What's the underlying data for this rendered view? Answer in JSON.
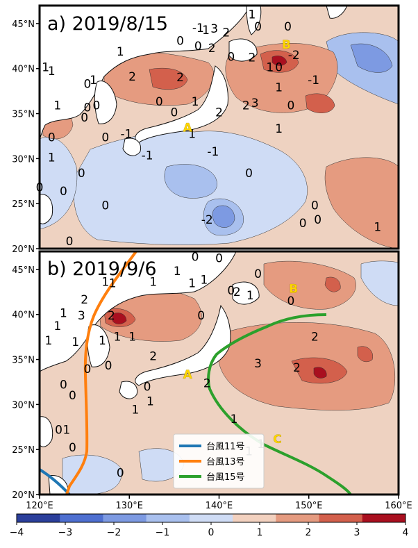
{
  "panels": [
    {
      "title": "a) 2019/8/15",
      "points": [
        {
          "name": "A",
          "lon": 136.5,
          "lat": 33.0
        },
        {
          "name": "B",
          "lon": 147.5,
          "lat": 42.2
        }
      ],
      "contour_labels": [
        {
          "t": "1",
          "lon": 155.5,
          "lat": 46.2
        },
        {
          "t": "0",
          "lon": 161.5,
          "lat": 44.5
        },
        {
          "t": "-1",
          "lon": 146.5,
          "lat": 44.3
        },
        {
          "t": "1",
          "lon": 147.8,
          "lat": 44.0
        },
        {
          "t": "3",
          "lon": 149.2,
          "lat": 44.2
        },
        {
          "t": "2",
          "lon": 151.2,
          "lat": 43.7
        },
        {
          "t": "0",
          "lon": 156.5,
          "lat": 44.5
        },
        {
          "t": "1",
          "lon": 133.5,
          "lat": 41.0
        },
        {
          "t": "0",
          "lon": 143.5,
          "lat": 42.5
        },
        {
          "t": "0",
          "lon": 146.5,
          "lat": 41.8
        },
        {
          "t": "2",
          "lon": 148.8,
          "lat": 41.5
        },
        {
          "t": "0",
          "lon": 152.0,
          "lat": 40.3
        },
        {
          "t": "2",
          "lon": 155.5,
          "lat": 40.2
        },
        {
          "t": "1",
          "lon": 158.5,
          "lat": 38.8
        },
        {
          "t": "0",
          "lon": 160.0,
          "lat": 38.8
        },
        {
          "t": "-2",
          "lon": 162.5,
          "lat": 40.5
        },
        {
          "t": "-1",
          "lon": 165.8,
          "lat": 37.0
        },
        {
          "t": "1",
          "lon": 121.0,
          "lat": 38.8
        },
        {
          "t": "1",
          "lon": 122.0,
          "lat": 38.3
        },
        {
          "t": "0",
          "lon": 128.0,
          "lat": 36.5
        },
        {
          "t": "1",
          "lon": 129.0,
          "lat": 37.0
        },
        {
          "t": "2",
          "lon": 135.5,
          "lat": 37.5
        },
        {
          "t": "0",
          "lon": 140.0,
          "lat": 34.0
        },
        {
          "t": "2",
          "lon": 143.5,
          "lat": 37.4
        },
        {
          "t": "1",
          "lon": 146.0,
          "lat": 34.0
        },
        {
          "t": "2",
          "lon": 150.0,
          "lat": 32.5
        },
        {
          "t": "2",
          "lon": 154.5,
          "lat": 33.5
        },
        {
          "t": "3",
          "lon": 156.0,
          "lat": 33.8
        },
        {
          "t": "1",
          "lon": 160.0,
          "lat": 36.0
        },
        {
          "t": "0",
          "lon": 162.0,
          "lat": 33.5
        },
        {
          "t": "1",
          "lon": 123.0,
          "lat": 33.5
        },
        {
          "t": "0",
          "lon": 128.0,
          "lat": 33.2
        },
        {
          "t": "0",
          "lon": 129.5,
          "lat": 33.5
        },
        {
          "t": "0",
          "lon": 127.5,
          "lat": 31.8
        },
        {
          "t": "0",
          "lon": 142.5,
          "lat": 32.5
        },
        {
          "t": "1",
          "lon": 145.5,
          "lat": 29.5
        },
        {
          "t": "1",
          "lon": 160.0,
          "lat": 30.2
        },
        {
          "t": "0",
          "lon": 122.0,
          "lat": 29.0
        },
        {
          "t": "0",
          "lon": 131.0,
          "lat": 29.0
        },
        {
          "t": "-1",
          "lon": 134.5,
          "lat": 29.5
        },
        {
          "t": "-1",
          "lon": 138.0,
          "lat": 26.5
        },
        {
          "t": "-1",
          "lon": 149.0,
          "lat": 27.0
        },
        {
          "t": "1",
          "lon": 122.0,
          "lat": 26.2
        },
        {
          "t": "0",
          "lon": 127.0,
          "lat": 24.0
        },
        {
          "t": "0",
          "lon": 155.0,
          "lat": 24.0
        },
        {
          "t": "0",
          "lon": 120.0,
          "lat": 22.0
        },
        {
          "t": "0",
          "lon": 124.0,
          "lat": 21.5
        },
        {
          "t": "0",
          "lon": 131.0,
          "lat": 19.5
        },
        {
          "t": "0",
          "lon": 166.0,
          "lat": 19.5
        },
        {
          "t": "-2",
          "lon": 148.0,
          "lat": 17.5
        },
        {
          "t": "0",
          "lon": 164.0,
          "lat": 17.0
        },
        {
          "t": "0",
          "lon": 166.5,
          "lat": 17.5
        },
        {
          "t": "1",
          "lon": 176.5,
          "lat": 16.5
        },
        {
          "t": "0",
          "lon": 125.0,
          "lat": 14.5
        }
      ]
    },
    {
      "title": "b) 2019/9/6",
      "points": [
        {
          "name": "A",
          "lon": 136.5,
          "lat": 32.9
        },
        {
          "name": "B",
          "lon": 148.3,
          "lat": 42.4
        },
        {
          "name": "C",
          "lon": 146.5,
          "lat": 25.7
        }
      ],
      "contour_labels": [
        {
          "t": "0",
          "lon": 146.0,
          "lat": 46.7
        },
        {
          "t": "0",
          "lon": 150.0,
          "lat": 46.5
        },
        {
          "t": "1",
          "lon": 143.0,
          "lat": 44.7
        },
        {
          "t": "1",
          "lon": 131.0,
          "lat": 43.2
        },
        {
          "t": "1",
          "lon": 139.0,
          "lat": 43.2
        },
        {
          "t": "1",
          "lon": 145.5,
          "lat": 43.0
        },
        {
          "t": "1",
          "lon": 147.5,
          "lat": 43.5
        },
        {
          "t": "0",
          "lon": 156.5,
          "lat": 44.3
        },
        {
          "t": "1",
          "lon": 132.2,
          "lat": 43.0
        },
        {
          "t": "0",
          "lon": 152.0,
          "lat": 42.0
        },
        {
          "t": "2",
          "lon": 153.0,
          "lat": 41.8
        },
        {
          "t": "1",
          "lon": 155.2,
          "lat": 41.3
        },
        {
          "t": "0",
          "lon": 162.0,
          "lat": 40.5
        },
        {
          "t": "2",
          "lon": 127.5,
          "lat": 40.7
        },
        {
          "t": "3",
          "lon": 127.0,
          "lat": 38.5
        },
        {
          "t": "2",
          "lon": 132.0,
          "lat": 38.5
        },
        {
          "t": "1",
          "lon": 124.0,
          "lat": 38.8
        },
        {
          "t": "1",
          "lon": 123.0,
          "lat": 37.0
        },
        {
          "t": "0",
          "lon": 147.0,
          "lat": 38.5
        },
        {
          "t": "1",
          "lon": 121.5,
          "lat": 35.0
        },
        {
          "t": "1",
          "lon": 126.0,
          "lat": 34.8
        },
        {
          "t": "1",
          "lon": 130.5,
          "lat": 35.0
        },
        {
          "t": "1",
          "lon": 133.0,
          "lat": 35.5
        },
        {
          "t": "1",
          "lon": 135.5,
          "lat": 35.5
        },
        {
          "t": "2",
          "lon": 166.0,
          "lat": 35.5
        },
        {
          "t": "2",
          "lon": 139.0,
          "lat": 32.8
        },
        {
          "t": "3",
          "lon": 156.5,
          "lat": 31.8
        },
        {
          "t": "2",
          "lon": 163.0,
          "lat": 31.2
        },
        {
          "t": "0",
          "lon": 128.0,
          "lat": 31.0
        },
        {
          "t": "0",
          "lon": 131.5,
          "lat": 31.5
        },
        {
          "t": "0",
          "lon": 138.0,
          "lat": 28.5
        },
        {
          "t": "2",
          "lon": 148.0,
          "lat": 29.0
        },
        {
          "t": "0",
          "lon": 124.0,
          "lat": 28.8
        },
        {
          "t": "1",
          "lon": 138.5,
          "lat": 26.5
        },
        {
          "t": "1",
          "lon": 136.0,
          "lat": 25.3
        },
        {
          "t": "0",
          "lon": 125.5,
          "lat": 27.3
        },
        {
          "t": "1",
          "lon": 152.5,
          "lat": 24.0
        },
        {
          "t": "0",
          "lon": 123.2,
          "lat": 22.5
        },
        {
          "t": "1",
          "lon": 124.5,
          "lat": 22.5
        },
        {
          "t": "1",
          "lon": 155.0,
          "lat": 19.5
        },
        {
          "t": "1",
          "lon": 157.0,
          "lat": 20.5
        },
        {
          "t": "0",
          "lon": 125.5,
          "lat": 20.0
        },
        {
          "t": "0",
          "lon": 133.5,
          "lat": 16.5
        }
      ]
    }
  ],
  "axes": {
    "lat_ticks": [
      "20°N",
      "25°N",
      "30°N",
      "35°N",
      "40°N",
      "45°N"
    ],
    "lon_ticks": [
      "120°E",
      "130°E",
      "140°E",
      "150°E",
      "160°E"
    ]
  },
  "colorbar": {
    "ticks": [
      "−4",
      "−3",
      "−2",
      "−1",
      "0",
      "1",
      "2",
      "3",
      "4"
    ],
    "bins": [
      "#2b3f9b",
      "#4e6fd0",
      "#7d9ae2",
      "#a9c0ee",
      "#cfdcf5",
      "#f2d1bf",
      "#e59b80",
      "#d3604c",
      "#a90f1f"
    ]
  },
  "legend": {
    "items": [
      {
        "label": "台風11号",
        "color": "#1f77b4"
      },
      {
        "label": "台風13号",
        "color": "#ff7f0e"
      },
      {
        "label": "台風15号",
        "color": "#2ca02c"
      }
    ]
  },
  "colors": {
    "ocean_base": "#eed2c1",
    "land": "#ffffff",
    "coast": "#111111",
    "label_point": "#ffd700"
  }
}
